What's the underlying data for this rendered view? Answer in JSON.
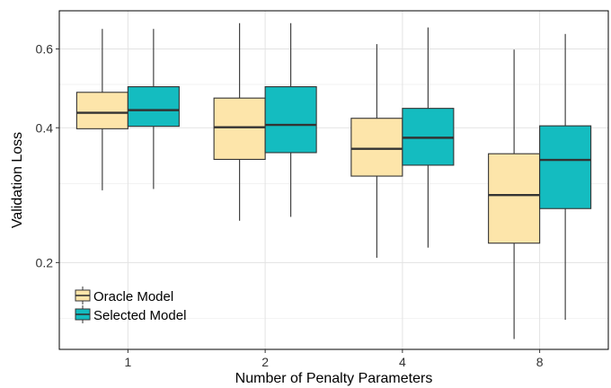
{
  "chart_data": {
    "type": "boxplot",
    "xlabel": "Number of Penalty Parameters",
    "ylabel": "Validation Loss",
    "y_scale": "log",
    "ylim": [
      0.128,
      0.73
    ],
    "y_ticks": [
      0.2,
      0.4,
      0.6
    ],
    "y_tick_labels": [
      "0.2",
      "0.4",
      "0.6"
    ],
    "y_minor_gridlines": [
      0.15,
      0.3,
      0.5
    ],
    "grid": true,
    "legend_position": "bottom-left inside",
    "categories": [
      "1",
      "2",
      "4",
      "8"
    ],
    "series": [
      {
        "name": "Oracle Model",
        "color": "#fde5aa",
        "boxes": [
          {
            "min": 0.29,
            "q1": 0.398,
            "median": 0.432,
            "q3": 0.48,
            "max": 0.665
          },
          {
            "min": 0.248,
            "q1": 0.34,
            "median": 0.401,
            "q3": 0.466,
            "max": 0.685
          },
          {
            "min": 0.205,
            "q1": 0.312,
            "median": 0.359,
            "q3": 0.42,
            "max": 0.615
          },
          {
            "min": 0.135,
            "q1": 0.221,
            "median": 0.283,
            "q3": 0.35,
            "max": 0.598
          }
        ]
      },
      {
        "name": "Selected Model",
        "color": "#14bcc0",
        "boxes": [
          {
            "min": 0.292,
            "q1": 0.403,
            "median": 0.438,
            "q3": 0.494,
            "max": 0.665
          },
          {
            "min": 0.253,
            "q1": 0.352,
            "median": 0.406,
            "q3": 0.494,
            "max": 0.685
          },
          {
            "min": 0.216,
            "q1": 0.33,
            "median": 0.38,
            "q3": 0.442,
            "max": 0.67
          },
          {
            "min": 0.149,
            "q1": 0.264,
            "median": 0.339,
            "q3": 0.404,
            "max": 0.648
          }
        ]
      }
    ]
  }
}
